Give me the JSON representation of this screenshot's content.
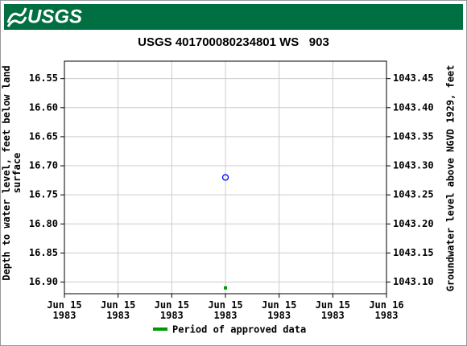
{
  "logo_text": "USGS",
  "chart_data": {
    "type": "scatter",
    "title": "USGS 401700080234801 WS   903",
    "y_label": "Depth to water level, feet below land\nsurface",
    "y2_label": "Groundwater level above NGVD 1929, feet",
    "categories": [
      "Jun 15\n1983",
      "Jun 15\n1983",
      "Jun 15\n1983",
      "Jun 15\n1983",
      "Jun 15\n1983",
      "Jun 15\n1983",
      "Jun 16\n1983"
    ],
    "ylim": [
      16.52,
      16.92
    ],
    "y_inverted": true,
    "yticks": [
      16.55,
      {
        "value": 16.6,
        "label": "16.60"
      },
      16.65,
      {
        "value": 16.7,
        "label": "16.70"
      },
      16.75,
      {
        "value": 16.8,
        "label": "16.80"
      },
      16.85,
      {
        "value": 16.9,
        "label": "16.90"
      }
    ],
    "y2lim": [
      1043.08,
      1043.48
    ],
    "y2ticks": [
      1043.45,
      {
        "value": 1043.4,
        "label": "1043.40"
      },
      1043.35,
      {
        "value": 1043.3,
        "label": "1043.30"
      },
      1043.25,
      {
        "value": 1043.2,
        "label": "1043.20"
      },
      1043.15,
      {
        "value": 1043.1,
        "label": "1043.10"
      }
    ],
    "grid": true,
    "series": [
      {
        "name": "Depth to water level",
        "color": "#0000ff",
        "marker": "circle",
        "values": [
          null,
          null,
          null,
          16.72,
          null,
          null,
          null
        ]
      },
      {
        "name": "Period of approved data",
        "color": "#009900",
        "marker": "square",
        "legend": true,
        "values": [
          null,
          null,
          null,
          16.91,
          null,
          null,
          null
        ]
      }
    ]
  }
}
